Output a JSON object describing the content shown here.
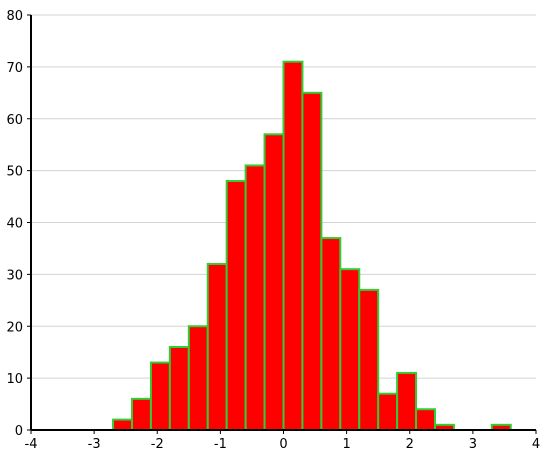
{
  "chart_data": {
    "type": "bar",
    "subtype": "histogram",
    "title": "",
    "xlabel": "",
    "ylabel": "",
    "xlim": [
      -4,
      4
    ],
    "ylim": [
      0,
      80
    ],
    "x_ticks": [
      -4,
      -3,
      -2,
      -1,
      0,
      1,
      2,
      3,
      4
    ],
    "x_tick_labels": [
      "-4",
      "-3",
      "-2",
      "-1",
      "0",
      "1",
      "2",
      "3",
      "4"
    ],
    "y_ticks": [
      0,
      10,
      20,
      30,
      40,
      50,
      60,
      70,
      80
    ],
    "y_tick_labels": [
      "0",
      "10",
      "20",
      "30",
      "40",
      "50",
      "60",
      "70",
      "80"
    ],
    "grid": "horizontal",
    "legend": "none",
    "bin_edges": [
      -2.7,
      -2.4,
      -2.1,
      -1.8,
      -1.5,
      -1.2,
      -0.9,
      -0.6,
      -0.3,
      0.0,
      0.3,
      0.6,
      0.9,
      1.2,
      1.5,
      1.8,
      2.1,
      2.4,
      2.7,
      3.0,
      3.3,
      3.6
    ],
    "values": [
      2,
      6,
      13,
      16,
      20,
      32,
      48,
      51,
      57,
      71,
      65,
      37,
      31,
      27,
      7,
      11,
      4,
      1,
      0,
      0,
      1
    ],
    "colors": {
      "bar_fill": "#ff0000",
      "bar_stroke": "#33cc33",
      "grid": "#d3d3d3",
      "axis": "#000000",
      "background": "#ffffff"
    }
  }
}
